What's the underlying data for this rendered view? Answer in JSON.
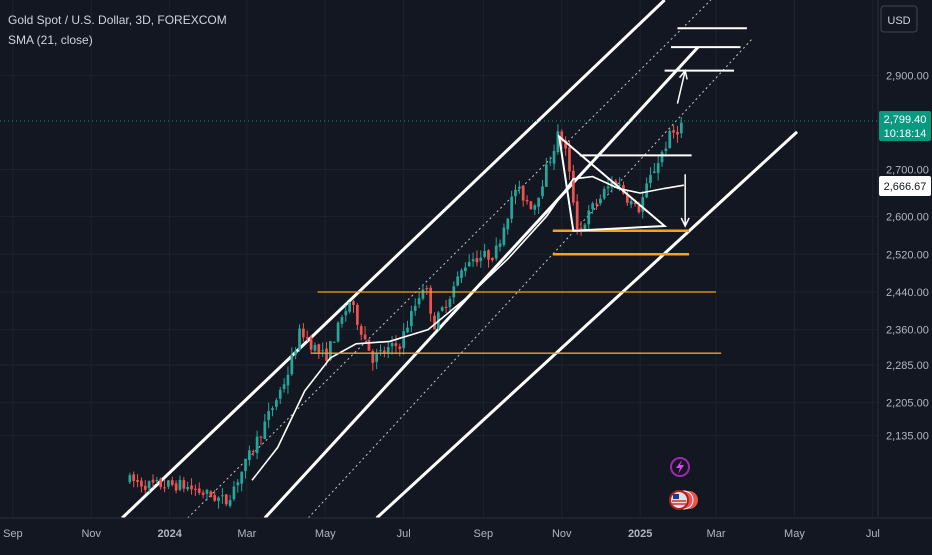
{
  "header": {
    "symbol_title": "Gold Spot / U.S. Dollar, 3D, FOREXCOM",
    "indicator_label": "SMA (21, close)",
    "currency_button": "USD"
  },
  "price_scale": {
    "ticks": [
      "2,900.00",
      "2,700.00",
      "2,600.00",
      "2,520.00",
      "2,440.00",
      "2,360.00",
      "2,285.00",
      "2,205.00",
      "2,135.00"
    ],
    "current_price": "2,799.40",
    "countdown": "10:18:14",
    "sma_value": "2,666.67"
  },
  "time_scale": {
    "ticks": [
      "Sep",
      "Nov",
      "2024",
      "Mar",
      "May",
      "Jul",
      "Sep",
      "Nov",
      "2025",
      "Mar",
      "May",
      "Jul"
    ]
  },
  "colors": {
    "background": "#131722",
    "up": "#26a69a",
    "down": "#ef5350",
    "drawing": "#ffffff",
    "support": "#f7a21b",
    "price_label": "#089981"
  },
  "icons": [
    "lightning-icon",
    "us-flag-event-icon"
  ],
  "chart_data": {
    "type": "candlestick",
    "title": "Gold Spot / U.S. Dollar, 3D, FOREXCOM",
    "x": "date",
    "y_unit": "USD",
    "series": [
      {
        "kind": "candles",
        "anchor_points": [
          [
            "2023-12-01",
            2040
          ],
          [
            "2023-12-15",
            2030
          ],
          [
            "2024-01-10",
            2030
          ],
          [
            "2024-02-14",
            1995
          ],
          [
            "2024-03-01",
            2080
          ],
          [
            "2024-03-15",
            2160
          ],
          [
            "2024-04-01",
            2260
          ],
          [
            "2024-04-12",
            2360
          ],
          [
            "2024-04-20",
            2330
          ],
          [
            "2024-05-01",
            2300
          ],
          [
            "2024-05-20",
            2420
          ],
          [
            "2024-06-07",
            2300
          ],
          [
            "2024-06-28",
            2330
          ],
          [
            "2024-07-17",
            2460
          ],
          [
            "2024-07-25",
            2370
          ],
          [
            "2024-08-20",
            2510
          ],
          [
            "2024-09-10",
            2520
          ],
          [
            "2024-09-26",
            2660
          ],
          [
            "2024-10-10",
            2620
          ],
          [
            "2024-10-30",
            2780
          ],
          [
            "2024-11-04",
            2740
          ],
          [
            "2024-11-14",
            2565
          ],
          [
            "2024-11-25",
            2620
          ],
          [
            "2024-12-12",
            2680
          ],
          [
            "2024-12-30",
            2610
          ],
          [
            "2025-01-10",
            2690
          ],
          [
            "2025-01-24",
            2770
          ],
          [
            "2025-02-04",
            2799.4
          ]
        ]
      },
      {
        "name": "SMA (21, close)",
        "kind": "line",
        "points": [
          [
            "2024-03-05",
            2040
          ],
          [
            "2024-03-25",
            2110
          ],
          [
            "2024-04-15",
            2230
          ],
          [
            "2024-05-05",
            2300
          ],
          [
            "2024-05-25",
            2330
          ],
          [
            "2024-06-20",
            2335
          ],
          [
            "2024-07-20",
            2360
          ],
          [
            "2024-08-20",
            2430
          ],
          [
            "2024-09-20",
            2510
          ],
          [
            "2024-10-20",
            2600
          ],
          [
            "2024-11-10",
            2680
          ],
          [
            "2024-11-25",
            2685
          ],
          [
            "2024-12-15",
            2660
          ],
          [
            "2025-01-01",
            2650
          ],
          [
            "2025-01-20",
            2660
          ],
          [
            "2025-02-04",
            2666.67
          ]
        ]
      }
    ],
    "drawings": {
      "channel_lines": [
        {
          "style": "solid",
          "from": [
            "2023-11-25",
            1960
          ],
          "to": [
            "2025-01-20",
            3060
          ]
        },
        {
          "style": "dotted",
          "from": [
            "2024-01-15",
            1960
          ],
          "to": [
            "2025-02-25",
            3060
          ]
        },
        {
          "style": "solid",
          "from": [
            "2024-03-15",
            1960
          ],
          "to": [
            "2025-02-15",
            2960
          ]
        },
        {
          "style": "dotted",
          "from": [
            "2024-03-25",
            1890
          ],
          "to": [
            "2025-03-30",
            2980
          ]
        },
        {
          "style": "solid",
          "from": [
            "2024-06-10",
            1960
          ],
          "to": [
            "2025-05-03",
            2780
          ]
        }
      ],
      "horizontal_levels": [
        {
          "color": "support",
          "price": 2440,
          "from": "2024-04-25",
          "to": "2025-03-01"
        },
        {
          "color": "support",
          "price": 2310,
          "from": "2024-04-20",
          "to": "2025-03-05"
        },
        {
          "color": "support",
          "price": 2570,
          "from": "2024-10-25",
          "to": "2025-02-08"
        },
        {
          "color": "support",
          "price": 2520,
          "from": "2024-10-25",
          "to": "2025-02-08"
        },
        {
          "color": "white",
          "price": 2910,
          "from": "2025-01-20",
          "to": "2025-03-15"
        },
        {
          "color": "white",
          "price": 2960,
          "from": "2025-01-25",
          "to": "2025-03-20"
        },
        {
          "color": "white",
          "price": 3000,
          "from": "2025-01-30",
          "to": "2025-03-25"
        },
        {
          "color": "white",
          "price": 2730,
          "from": "2024-11-15",
          "to": "2025-02-10"
        }
      ],
      "triangle": {
        "points": [
          [
            "2024-10-30",
            2770
          ],
          [
            "2025-01-20",
            2580
          ],
          [
            "2024-11-10",
            2570
          ]
        ]
      },
      "arrows": [
        {
          "direction": "up",
          "from": [
            "2025-01-30",
            2840
          ],
          "to": [
            "2025-02-05",
            2910
          ]
        },
        {
          "direction": "down",
          "from": [
            "2025-02-05",
            2690
          ],
          "to": [
            "2025-02-05",
            2580
          ]
        }
      ]
    },
    "xlim": [
      "2023-08-22",
      "2025-07-05"
    ],
    "ylim": [
      1960,
      3060
    ],
    "grid": true,
    "legend": "top-left"
  }
}
